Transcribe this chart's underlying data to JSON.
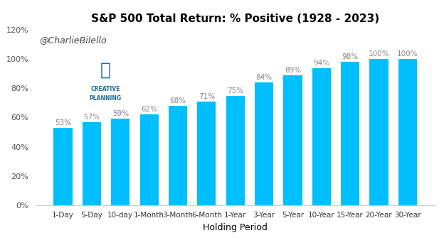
{
  "title": "S&P 500 Total Return: % Positive (1928 - 2023)",
  "xlabel": "Holding Period",
  "categories": [
    "1-Day",
    "5-Day",
    "10-day",
    "1-Month",
    "3-Month",
    "6-Month",
    "1-Year",
    "3-Year",
    "5-Year",
    "10-Year",
    "15-Year",
    "20-Year",
    "30-Year"
  ],
  "values": [
    53,
    57,
    59,
    62,
    68,
    71,
    75,
    84,
    89,
    94,
    98,
    100,
    100
  ],
  "bar_color": "#00BFFF",
  "label_color": "#888888",
  "title_fontsize": 11,
  "axis_label_fontsize": 9,
  "bar_label_fontsize": 7.5,
  "xtick_fontsize": 7.5,
  "ytick_fontsize": 8,
  "watermark_text": "@CharlieBilello",
  "watermark_color": "#444444",
  "background_color": "#ffffff",
  "ylim": [
    0,
    120
  ],
  "yticks": [
    0,
    20,
    40,
    60,
    80,
    100,
    120
  ],
  "logo_c_color": "#1a6b9a",
  "logo_text_color": "#1a6b9a"
}
